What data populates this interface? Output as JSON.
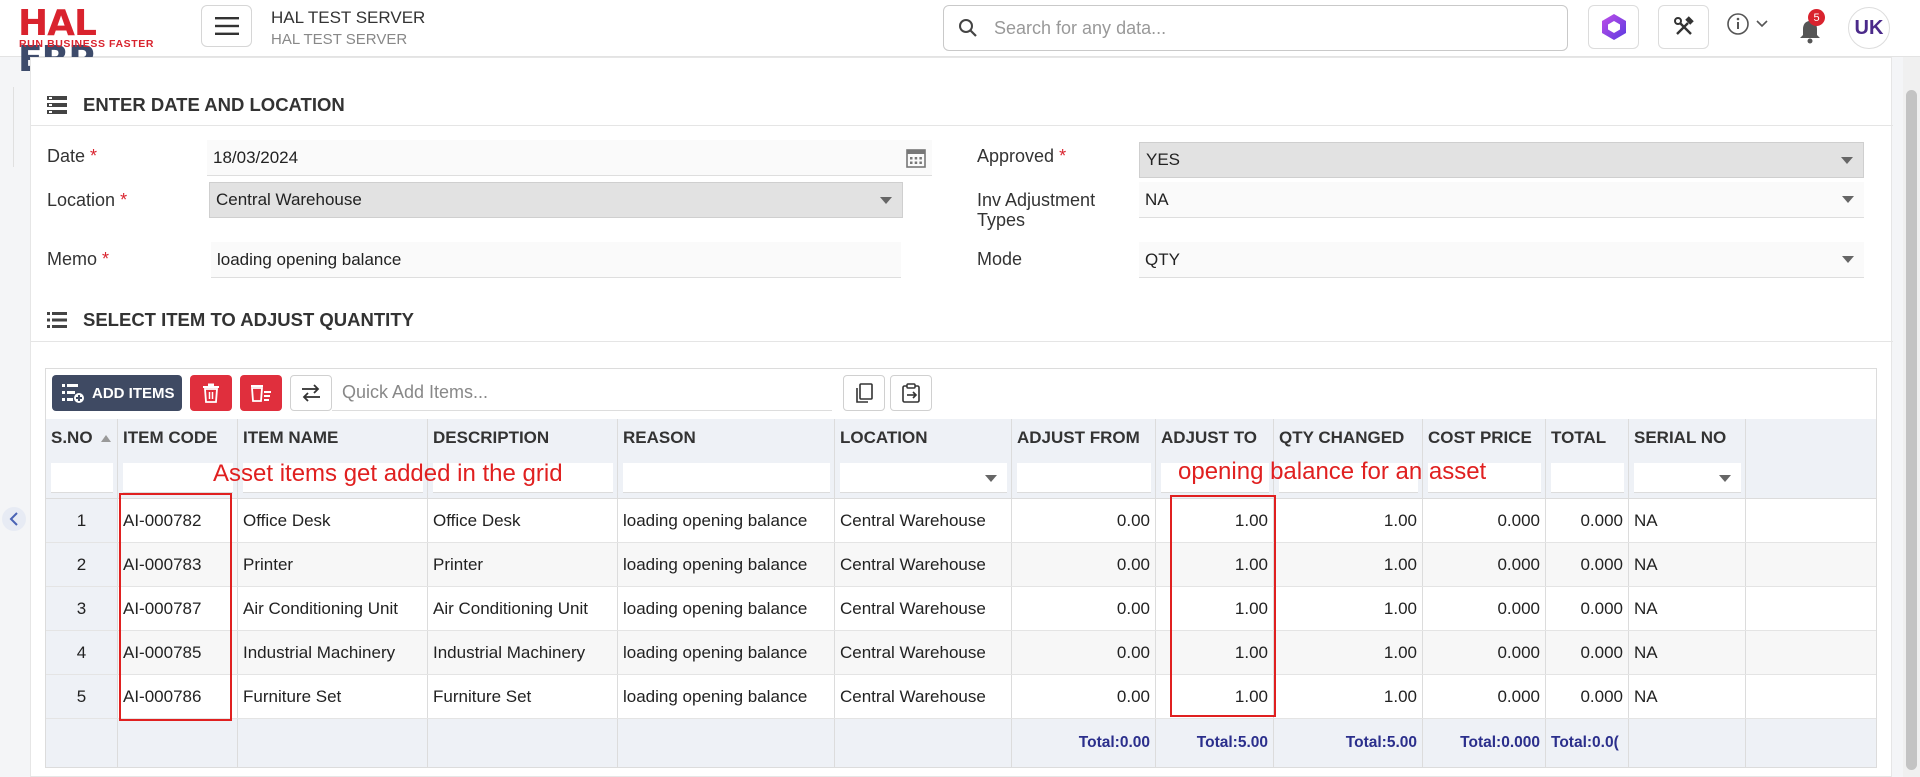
{
  "header": {
    "logo_main": "HAL",
    "logo_erp": "ERP",
    "logo_tagline": "RUN BUSINESS FASTER",
    "server_title": "HAL TEST SERVER",
    "server_subtitle": "HAL TEST SERVER",
    "search_placeholder": "Search for any data...",
    "notification_count": "5",
    "avatar_initials": "UK"
  },
  "section_date_location": {
    "title": "ENTER DATE AND LOCATION",
    "date_label": "Date",
    "date_value": "18/03/2024",
    "location_label": "Location",
    "location_value": "Central Warehouse",
    "memo_label": "Memo",
    "memo_value": "loading opening balance",
    "approved_label": "Approved",
    "approved_value": "YES",
    "inv_adj_label_1": "Inv Adjustment",
    "inv_adj_label_2": "Types",
    "inv_adj_value": "NA",
    "mode_label": "Mode",
    "mode_value": "QTY",
    "required_mark": "*"
  },
  "section_items": {
    "title": "SELECT ITEM TO ADJUST QUANTITY",
    "add_items_label": "ADD ITEMS",
    "quick_add_placeholder": "Quick Add Items..."
  },
  "grid": {
    "columns": [
      "S.NO",
      "ITEM CODE",
      "ITEM NAME",
      "DESCRIPTION",
      "REASON",
      "LOCATION",
      "ADJUST FROM",
      "ADJUST TO",
      "QTY CHANGED",
      "COST PRICE",
      "TOTAL",
      "SERIAL NO"
    ],
    "rows": [
      [
        "1",
        "AI-000782",
        "Office Desk",
        "Office Desk",
        "loading opening balance",
        "Central Warehouse",
        "0.00",
        "1.00",
        "1.00",
        "0.000",
        "0.000",
        "NA"
      ],
      [
        "2",
        "AI-000783",
        "Printer",
        "Printer",
        "loading opening balance",
        "Central Warehouse",
        "0.00",
        "1.00",
        "1.00",
        "0.000",
        "0.000",
        "NA"
      ],
      [
        "3",
        "AI-000787",
        "Air Conditioning Unit",
        "Air Conditioning Unit",
        "loading opening balance",
        "Central Warehouse",
        "0.00",
        "1.00",
        "1.00",
        "0.000",
        "0.000",
        "NA"
      ],
      [
        "4",
        "AI-000785",
        "Industrial Machinery",
        "Industrial Machinery",
        "loading opening balance",
        "Central Warehouse",
        "0.00",
        "1.00",
        "1.00",
        "0.000",
        "0.000",
        "NA"
      ],
      [
        "5",
        "AI-000786",
        "Furniture Set",
        "Furniture Set",
        "loading opening balance",
        "Central Warehouse",
        "0.00",
        "1.00",
        "1.00",
        "0.000",
        "0.000",
        "NA"
      ]
    ],
    "totals": {
      "adjust_from": "Total:0.00",
      "adjust_to": "Total:5.00",
      "qty_changed": "Total:5.00",
      "cost_price": "Total:0.000",
      "total": "Total:0.0("
    }
  },
  "annotations": {
    "grid_note": "Asset items get added in the grid",
    "balance_note": "opening balance for an asset"
  },
  "colors": {
    "brand_red": "#d9232e",
    "add_button": "#3f4a63",
    "annotation": "#e02020",
    "totals_text": "#2b2f8c"
  }
}
